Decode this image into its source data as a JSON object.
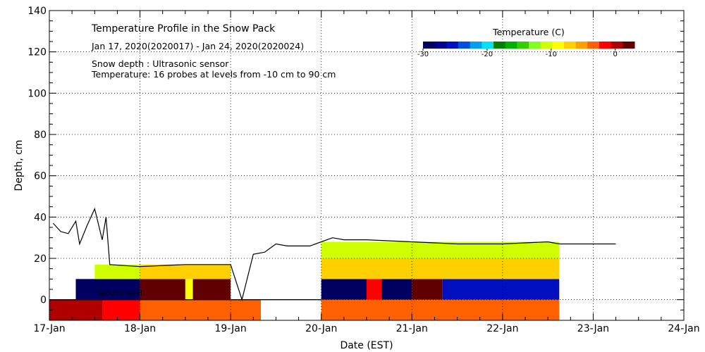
{
  "chart_data": {
    "type": "heatmap",
    "title": "Temperature Profile in the Snow Pack",
    "subtitle": "Jan 17, 2020(2020017) - Jan 24, 2020(2020024)",
    "notes": [
      "Snow depth : Ultrasonic sensor",
      "Temperature: 16 probes at levels from -10 cm to 90 cm"
    ],
    "xlabel": "Date (EST)",
    "ylabel": "Depth, cm",
    "annotation": "Ground level",
    "x_ticks": [
      "17-Jan",
      "18-Jan",
      "19-Jan",
      "20-Jan",
      "21-Jan",
      "22-Jan",
      "23-Jan",
      "24-Jan"
    ],
    "xlim": [
      "2020-01-17",
      "2020-01-24"
    ],
    "ylim": [
      -10,
      140
    ],
    "y_ticks": [
      0,
      20,
      40,
      60,
      80,
      100,
      120,
      140
    ],
    "grid": true,
    "colorbar": {
      "title": "Temperature (C)",
      "min": -30,
      "max": 3,
      "tick_values": [
        -30,
        -20,
        -10,
        0
      ],
      "tick_labels": [
        "-30",
        "-20",
        "-10",
        "0"
      ],
      "colors": [
        "#000060",
        "#000090",
        "#0010c0",
        "#0050e0",
        "#00a0f0",
        "#00e0ff",
        "#008000",
        "#00b000",
        "#30d000",
        "#80ff20",
        "#d0ff00",
        "#ffff00",
        "#ffd000",
        "#ffa000",
        "#ff6000",
        "#ff0000",
        "#b00000",
        "#600000"
      ]
    },
    "snow_depth": {
      "name": "Snow depth",
      "x": [
        "2020-01-17 01:00",
        "2020-01-17 03:00",
        "2020-01-17 05:00",
        "2020-01-17 07:00",
        "2020-01-17 08:00",
        "2020-01-17 10:00",
        "2020-01-17 12:00",
        "2020-01-17 14:00",
        "2020-01-17 15:00",
        "2020-01-17 16:00",
        "2020-01-18 00:00",
        "2020-01-18 12:00",
        "2020-01-19 00:00",
        "2020-01-19 03:00",
        "2020-01-19 06:00",
        "2020-01-19 09:00",
        "2020-01-19 12:00",
        "2020-01-19 15:00",
        "2020-01-19 18:00",
        "2020-01-19 21:00",
        "2020-01-20 00:00",
        "2020-01-20 03:00",
        "2020-01-20 06:00",
        "2020-01-20 12:00",
        "2020-01-21 00:00",
        "2020-01-21 12:00",
        "2020-01-22 00:00",
        "2020-01-22 12:00",
        "2020-01-22 15:00",
        "2020-01-23 00:00",
        "2020-01-23 06:00"
      ],
      "y": [
        37,
        33,
        32,
        38,
        27,
        36,
        44,
        29,
        40,
        17,
        16,
        17,
        17,
        0,
        22,
        23,
        27,
        26,
        26,
        26,
        28,
        30,
        29,
        29,
        28,
        27,
        27,
        28,
        27,
        27,
        27
      ]
    },
    "temperature_bands": [
      {
        "x": [
          "2020-01-17 00:00",
          "2020-01-17 14:00"
        ],
        "y": [
          -10,
          0
        ],
        "value": 0
      },
      {
        "x": [
          "2020-01-17 14:00",
          "2020-01-18 00:00"
        ],
        "y": [
          -10,
          0
        ],
        "value": -2
      },
      {
        "x": [
          "2020-01-18 00:00",
          "2020-01-19 08:00"
        ],
        "y": [
          -10,
          0
        ],
        "value": -4
      },
      {
        "x": [
          "2020-01-17 07:00",
          "2020-01-18 00:00"
        ],
        "y": [
          0,
          10
        ],
        "value": -30
      },
      {
        "x": [
          "2020-01-18 00:00",
          "2020-01-18 12:00"
        ],
        "y": [
          0,
          10
        ],
        "value": 3
      },
      {
        "x": [
          "2020-01-18 12:00",
          "2020-01-18 14:00"
        ],
        "y": [
          0,
          10
        ],
        "value": -9
      },
      {
        "x": [
          "2020-01-18 14:00",
          "2020-01-19 00:00"
        ],
        "y": [
          0,
          10
        ],
        "value": 3
      },
      {
        "x": [
          "2020-01-17 12:00",
          "2020-01-18 00:00"
        ],
        "y": [
          10,
          17
        ],
        "value": -10
      },
      {
        "x": [
          "2020-01-18 00:00",
          "2020-01-19 00:00"
        ],
        "y": [
          10,
          17
        ],
        "value": -8
      },
      {
        "x": [
          "2020-01-20 00:00",
          "2020-01-22 15:00"
        ],
        "y": [
          -10,
          0
        ],
        "value": -4
      },
      {
        "x": [
          "2020-01-20 00:00",
          "2020-01-20 12:00"
        ],
        "y": [
          0,
          10
        ],
        "value": -30
      },
      {
        "x": [
          "2020-01-20 12:00",
          "2020-01-20 16:00"
        ],
        "y": [
          0,
          10
        ],
        "value": -1
      },
      {
        "x": [
          "2020-01-20 16:00",
          "2020-01-21 00:00"
        ],
        "y": [
          0,
          10
        ],
        "value": -30
      },
      {
        "x": [
          "2020-01-21 00:00",
          "2020-01-21 08:00"
        ],
        "y": [
          0,
          10
        ],
        "value": 3
      },
      {
        "x": [
          "2020-01-21 08:00",
          "2020-01-22 15:00"
        ],
        "y": [
          0,
          10
        ],
        "value": -25
      },
      {
        "x": [
          "2020-01-20 00:00",
          "2020-01-22 15:00"
        ],
        "y": [
          10,
          20
        ],
        "value": -7
      },
      {
        "x": [
          "2020-01-20 00:00",
          "2020-01-22 15:00"
        ],
        "y": [
          20,
          28
        ],
        "value": -11
      }
    ]
  }
}
